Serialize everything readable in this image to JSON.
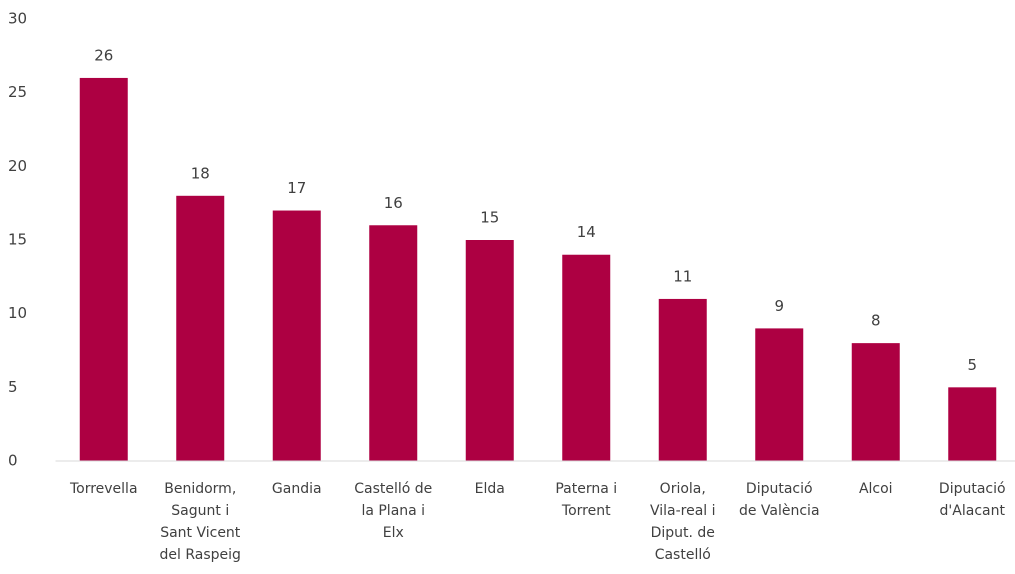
{
  "chart_data": {
    "type": "bar",
    "categories": [
      [
        "Torrevella"
      ],
      [
        "Benidorm,",
        "Sagunt i",
        "Sant Vicent",
        "del Raspeig"
      ],
      [
        "Gandia"
      ],
      [
        "Castelló de",
        "la Plana i",
        "Elx"
      ],
      [
        "Elda"
      ],
      [
        "Paterna i",
        "Torrent"
      ],
      [
        "Oriola,",
        "Vila-real i",
        "Diput. de",
        "Castelló"
      ],
      [
        "Diputació",
        "de València"
      ],
      [
        "Alcoi"
      ],
      [
        "Diputació",
        "d'Alacant"
      ]
    ],
    "values": [
      26,
      18,
      17,
      16,
      15,
      14,
      11,
      9,
      8,
      5
    ],
    "color": "#ad0042",
    "ylim": [
      0,
      30
    ],
    "yticks": [
      0,
      5,
      10,
      15,
      20,
      25,
      30
    ],
    "grid": false
  }
}
